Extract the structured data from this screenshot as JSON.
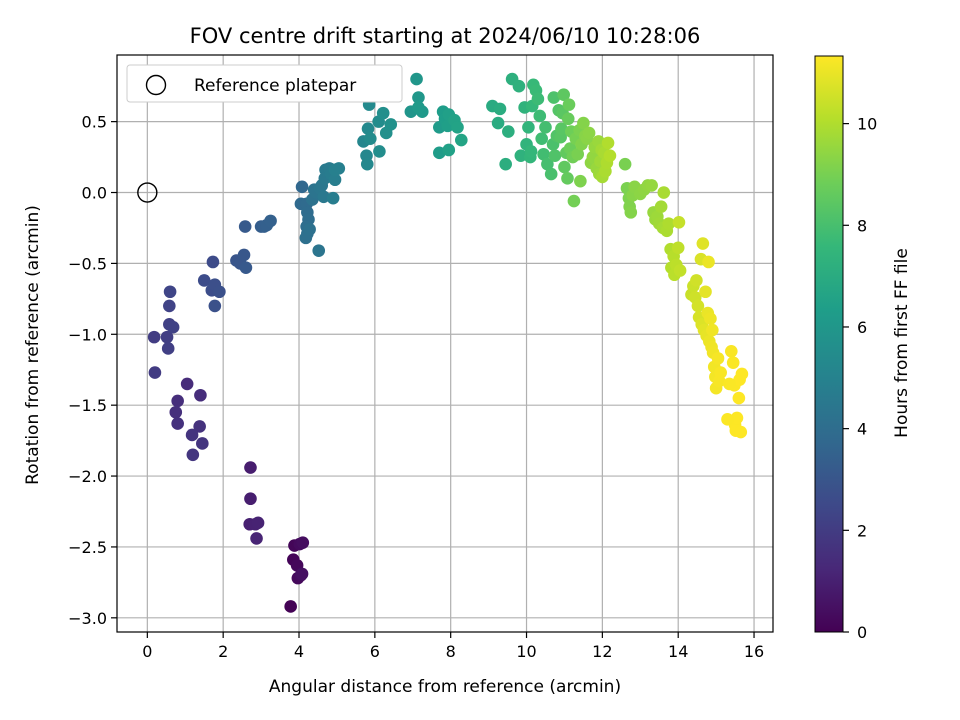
{
  "chart_data": {
    "type": "scatter",
    "title": "FOV centre drift starting at 2024/06/10 10:28:06",
    "xlabel": "Angular distance from reference (arcmin)",
    "ylabel": "Rotation from reference (arcmin)",
    "xlim": [
      -0.8,
      16.5
    ],
    "ylim": [
      -3.1,
      0.97
    ],
    "x_ticks": [
      0,
      2,
      4,
      6,
      8,
      10,
      12,
      14,
      16
    ],
    "y_ticks": [
      -3.0,
      -2.5,
      -2.0,
      -1.5,
      -1.0,
      -0.5,
      0.0,
      0.5
    ],
    "x_tick_labels": [
      "0",
      "2",
      "4",
      "6",
      "8",
      "10",
      "12",
      "14",
      "16"
    ],
    "y_tick_labels": [
      "−3.0",
      "−2.5",
      "−2.0",
      "−1.5",
      "−1.0",
      "−0.5",
      "0.0",
      "0.5"
    ],
    "grid": true,
    "legend": {
      "placement": "top-left",
      "label": "Reference platepar"
    },
    "reference_point": {
      "x": 0,
      "y": 0
    },
    "colorbar": {
      "label": "Hours from first FF file",
      "colormap": "viridis",
      "range": [
        0,
        11.33
      ],
      "ticks": [
        0,
        2,
        4,
        6,
        8,
        10
      ],
      "tick_labels": [
        "0",
        "2",
        "4",
        "6",
        "8",
        "10"
      ],
      "colors": [
        "#440154",
        "#482878",
        "#3e4989",
        "#31688e",
        "#26828e",
        "#1f9e89",
        "#35b779",
        "#6ece58",
        "#b5de2b",
        "#fde725"
      ]
    },
    "series": [
      {
        "points": [
          [
            3.78,
            -2.92,
            0.05
          ],
          [
            3.85,
            -2.59,
            0.1
          ],
          [
            3.88,
            -2.49,
            0.15
          ],
          [
            3.95,
            -2.63,
            0.2
          ],
          [
            3.97,
            -2.72,
            0.25
          ],
          [
            4.02,
            -2.48,
            0.3
          ],
          [
            4.05,
            -2.7,
            0.35
          ],
          [
            4.1,
            -2.47,
            0.4
          ],
          [
            4.08,
            -2.69,
            0.45
          ],
          [
            2.72,
            -1.94,
            0.9
          ],
          [
            2.72,
            -2.16,
            0.95
          ],
          [
            2.7,
            -2.34,
            1.0
          ],
          [
            2.85,
            -2.34,
            1.05
          ],
          [
            2.92,
            -2.33,
            1.1
          ],
          [
            2.88,
            -2.44,
            1.15
          ],
          [
            1.05,
            -1.35,
            1.4
          ],
          [
            1.4,
            -1.43,
            1.45
          ],
          [
            0.8,
            -1.47,
            1.5
          ],
          [
            0.75,
            -1.55,
            1.55
          ],
          [
            0.8,
            -1.63,
            1.6
          ],
          [
            1.38,
            -1.65,
            1.65
          ],
          [
            1.18,
            -1.71,
            1.7
          ],
          [
            1.45,
            -1.77,
            1.75
          ],
          [
            1.2,
            -1.85,
            1.8
          ],
          [
            0.2,
            -1.27,
            2.0
          ],
          [
            0.18,
            -1.02,
            2.05
          ],
          [
            0.52,
            -1.02,
            2.1
          ],
          [
            0.55,
            -1.1,
            2.15
          ],
          [
            0.58,
            -0.93,
            2.2
          ],
          [
            0.68,
            -0.95,
            2.25
          ],
          [
            0.58,
            -0.8,
            2.3
          ],
          [
            0.6,
            -0.7,
            2.35
          ],
          [
            1.73,
            -0.49,
            2.6
          ],
          [
            1.5,
            -0.62,
            2.65
          ],
          [
            1.7,
            -0.69,
            2.7
          ],
          [
            1.78,
            -0.65,
            2.75
          ],
          [
            1.9,
            -0.7,
            2.8
          ],
          [
            1.78,
            -0.8,
            2.85
          ],
          [
            2.35,
            -0.48,
            3.0
          ],
          [
            2.45,
            -0.5,
            3.05
          ],
          [
            2.55,
            -0.44,
            3.1
          ],
          [
            2.6,
            -0.53,
            3.15
          ],
          [
            2.58,
            -0.24,
            3.2
          ],
          [
            3.0,
            -0.24,
            3.35
          ],
          [
            3.08,
            -0.24,
            3.4
          ],
          [
            3.15,
            -0.23,
            3.45
          ],
          [
            3.25,
            -0.2,
            3.5
          ],
          [
            4.08,
            0.04,
            3.8
          ],
          [
            4.05,
            -0.08,
            3.85
          ],
          [
            4.2,
            -0.08,
            3.9
          ],
          [
            4.22,
            -0.14,
            3.95
          ],
          [
            4.25,
            -0.19,
            4.0
          ],
          [
            4.2,
            -0.24,
            4.05
          ],
          [
            4.22,
            -0.29,
            4.1
          ],
          [
            4.18,
            -0.32,
            4.15
          ],
          [
            4.28,
            -0.26,
            4.2
          ],
          [
            4.35,
            -0.05,
            4.25
          ],
          [
            4.4,
            0.02,
            4.3
          ],
          [
            4.45,
            0.0,
            4.35
          ],
          [
            4.52,
            -0.41,
            4.4
          ],
          [
            4.55,
            0.03,
            4.45
          ],
          [
            4.6,
            0.05,
            4.5
          ],
          [
            4.65,
            -0.03,
            4.55
          ],
          [
            4.68,
            0.1,
            4.6
          ],
          [
            4.7,
            0.16,
            4.65
          ],
          [
            4.8,
            0.17,
            4.7
          ],
          [
            4.85,
            0.13,
            4.75
          ],
          [
            4.9,
            -0.04,
            4.8
          ],
          [
            4.95,
            0.09,
            4.85
          ],
          [
            5.05,
            0.17,
            4.9
          ],
          [
            4.95,
            0.16,
            4.95
          ],
          [
            5.7,
            0.36,
            5.2
          ],
          [
            5.78,
            0.26,
            5.25
          ],
          [
            5.8,
            0.2,
            5.3
          ],
          [
            5.82,
            0.45,
            5.35
          ],
          [
            5.85,
            0.62,
            5.4
          ],
          [
            5.88,
            0.38,
            5.45
          ],
          [
            6.1,
            0.5,
            5.5
          ],
          [
            6.12,
            0.29,
            5.55
          ],
          [
            6.22,
            0.56,
            5.6
          ],
          [
            6.3,
            0.42,
            5.65
          ],
          [
            6.42,
            0.48,
            5.7
          ],
          [
            6.95,
            0.57,
            5.9
          ],
          [
            7.1,
            0.8,
            5.95
          ],
          [
            7.15,
            0.67,
            6.0
          ],
          [
            7.25,
            0.57,
            6.05
          ],
          [
            7.15,
            0.6,
            6.1
          ],
          [
            7.7,
            0.46,
            6.15
          ],
          [
            7.7,
            0.28,
            6.2
          ],
          [
            7.8,
            0.57,
            6.25
          ],
          [
            7.85,
            0.52,
            6.3
          ],
          [
            7.92,
            0.47,
            6.35
          ],
          [
            7.95,
            0.55,
            6.4
          ],
          [
            7.95,
            0.3,
            6.45
          ],
          [
            8.1,
            0.51,
            6.5
          ],
          [
            8.18,
            0.46,
            6.55
          ],
          [
            8.28,
            0.37,
            6.6
          ],
          [
            9.1,
            0.61,
            6.9
          ],
          [
            9.25,
            0.49,
            6.95
          ],
          [
            9.3,
            0.59,
            7.0
          ],
          [
            9.45,
            0.2,
            7.05
          ],
          [
            9.52,
            0.43,
            7.1
          ],
          [
            9.62,
            0.8,
            7.15
          ],
          [
            9.8,
            0.75,
            7.2
          ],
          [
            9.85,
            0.26,
            7.25
          ],
          [
            9.95,
            0.6,
            7.3
          ],
          [
            10.0,
            0.34,
            7.35
          ],
          [
            10.05,
            0.46,
            7.4
          ],
          [
            10.1,
            0.25,
            7.45
          ],
          [
            10.12,
            0.29,
            7.5
          ],
          [
            10.15,
            0.61,
            7.55
          ],
          [
            10.18,
            0.76,
            7.6
          ],
          [
            10.25,
            0.72,
            7.65
          ],
          [
            10.3,
            0.66,
            7.7
          ],
          [
            10.35,
            0.54,
            7.75
          ],
          [
            10.4,
            0.38,
            7.8
          ],
          [
            10.45,
            0.27,
            7.85
          ],
          [
            10.5,
            0.46,
            7.9
          ],
          [
            10.55,
            0.2,
            7.95
          ],
          [
            10.65,
            0.13,
            8.0
          ],
          [
            10.7,
            0.34,
            8.05
          ],
          [
            10.72,
            0.67,
            8.1
          ],
          [
            10.75,
            0.26,
            8.15
          ],
          [
            10.8,
            0.4,
            8.2
          ],
          [
            10.85,
            0.58,
            8.25
          ],
          [
            10.9,
            0.39,
            8.3
          ],
          [
            10.92,
            0.45,
            8.35
          ],
          [
            10.95,
            0.56,
            8.4
          ],
          [
            10.98,
            0.69,
            8.45
          ],
          [
            11.0,
            0.18,
            8.5
          ],
          [
            11.05,
            0.28,
            8.55
          ],
          [
            11.08,
            0.1,
            8.6
          ],
          [
            11.1,
            0.52,
            8.65
          ],
          [
            11.12,
            0.62,
            8.7
          ],
          [
            11.15,
            0.31,
            8.75
          ],
          [
            11.18,
            0.43,
            8.8
          ],
          [
            11.22,
            0.25,
            8.85
          ],
          [
            11.25,
            -0.06,
            8.9
          ],
          [
            11.3,
            0.38,
            8.95
          ],
          [
            11.35,
            0.27,
            9.0
          ],
          [
            11.4,
            0.44,
            9.05
          ],
          [
            11.42,
            0.08,
            9.1
          ],
          [
            11.45,
            0.34,
            9.15
          ],
          [
            11.5,
            0.49,
            9.2
          ],
          [
            11.55,
            0.4,
            9.25
          ],
          [
            11.6,
            0.38,
            9.3
          ],
          [
            11.65,
            0.42,
            9.35
          ],
          [
            11.7,
            0.21,
            9.4
          ],
          [
            11.75,
            0.25,
            9.45
          ],
          [
            11.8,
            0.32,
            9.5
          ],
          [
            11.85,
            0.17,
            9.55
          ],
          [
            11.9,
            0.36,
            9.6
          ],
          [
            11.92,
            0.13,
            9.65
          ],
          [
            11.95,
            0.22,
            9.7
          ],
          [
            11.98,
            0.3,
            9.75
          ],
          [
            12.0,
            0.11,
            9.8
          ],
          [
            12.05,
            0.28,
            9.85
          ],
          [
            12.08,
            0.15,
            9.9
          ],
          [
            12.12,
            0.21,
            9.95
          ],
          [
            12.15,
            0.35,
            10.0
          ],
          [
            12.2,
            0.26,
            10.05
          ],
          [
            12.6,
            0.2,
            9.0
          ],
          [
            12.65,
            0.03,
            9.05
          ],
          [
            12.7,
            -0.04,
            9.1
          ],
          [
            12.72,
            -0.1,
            9.15
          ],
          [
            12.75,
            -0.14,
            9.2
          ],
          [
            12.8,
            -0.02,
            9.25
          ],
          [
            12.85,
            0.04,
            9.3
          ],
          [
            13.0,
            -0.01,
            9.35
          ],
          [
            13.1,
            0.02,
            9.4
          ],
          [
            13.2,
            0.05,
            9.45
          ],
          [
            13.3,
            0.05,
            9.5
          ],
          [
            13.35,
            -0.14,
            9.55
          ],
          [
            13.4,
            -0.19,
            9.6
          ],
          [
            13.45,
            -0.17,
            9.65
          ],
          [
            13.5,
            -0.22,
            9.7
          ],
          [
            13.55,
            -0.1,
            9.75
          ],
          [
            13.6,
            -0.25,
            9.8
          ],
          [
            13.62,
            0.0,
            9.85
          ],
          [
            13.7,
            -0.27,
            9.9
          ],
          [
            13.75,
            -0.22,
            9.95
          ],
          [
            13.8,
            -0.4,
            10.0
          ],
          [
            13.82,
            -0.53,
            10.05
          ],
          [
            13.88,
            -0.45,
            10.1
          ],
          [
            13.9,
            -0.58,
            10.15
          ],
          [
            13.95,
            -0.51,
            10.2
          ],
          [
            14.0,
            -0.39,
            10.25
          ],
          [
            14.05,
            -0.55,
            10.3
          ],
          [
            14.02,
            -0.21,
            10.35
          ],
          [
            14.35,
            -0.72,
            10.4
          ],
          [
            14.4,
            -0.66,
            10.45
          ],
          [
            14.45,
            -0.74,
            10.5
          ],
          [
            14.48,
            -0.62,
            10.55
          ],
          [
            14.52,
            -0.8,
            10.6
          ],
          [
            14.55,
            -0.88,
            10.65
          ],
          [
            14.6,
            -0.47,
            10.7
          ],
          [
            14.62,
            -0.93,
            10.75
          ],
          [
            14.65,
            -0.36,
            10.8
          ],
          [
            14.68,
            -0.97,
            10.85
          ],
          [
            14.72,
            -0.7,
            10.9
          ],
          [
            14.75,
            -1.01,
            10.95
          ],
          [
            14.78,
            -0.85,
            11.0
          ],
          [
            14.8,
            -0.49,
            11.02
          ],
          [
            14.82,
            -1.05,
            11.04
          ],
          [
            14.85,
            -0.89,
            11.06
          ],
          [
            14.88,
            -1.09,
            11.08
          ],
          [
            14.9,
            -0.97,
            11.1
          ],
          [
            14.92,
            -1.13,
            11.12
          ],
          [
            14.95,
            -1.23,
            11.14
          ],
          [
            14.98,
            -1.3,
            11.16
          ],
          [
            15.0,
            -1.38,
            11.18
          ],
          [
            15.05,
            -1.17,
            11.2
          ],
          [
            15.08,
            -1.33,
            11.22
          ],
          [
            15.12,
            -1.27,
            11.24
          ],
          [
            15.4,
            -1.12,
            11.26
          ],
          [
            15.45,
            -1.2,
            11.28
          ],
          [
            15.48,
            -1.36,
            11.3
          ],
          [
            15.5,
            -1.64,
            11.32
          ],
          [
            15.52,
            -1.68,
            11.33
          ],
          [
            15.55,
            -1.59,
            11.33
          ],
          [
            15.6,
            -1.45,
            11.33
          ],
          [
            15.62,
            -1.32,
            11.33
          ],
          [
            15.65,
            -1.69,
            11.33
          ],
          [
            15.68,
            -1.28,
            11.33
          ],
          [
            15.3,
            -1.6,
            11.3
          ],
          [
            15.35,
            -1.35,
            11.28
          ]
        ]
      }
    ]
  }
}
